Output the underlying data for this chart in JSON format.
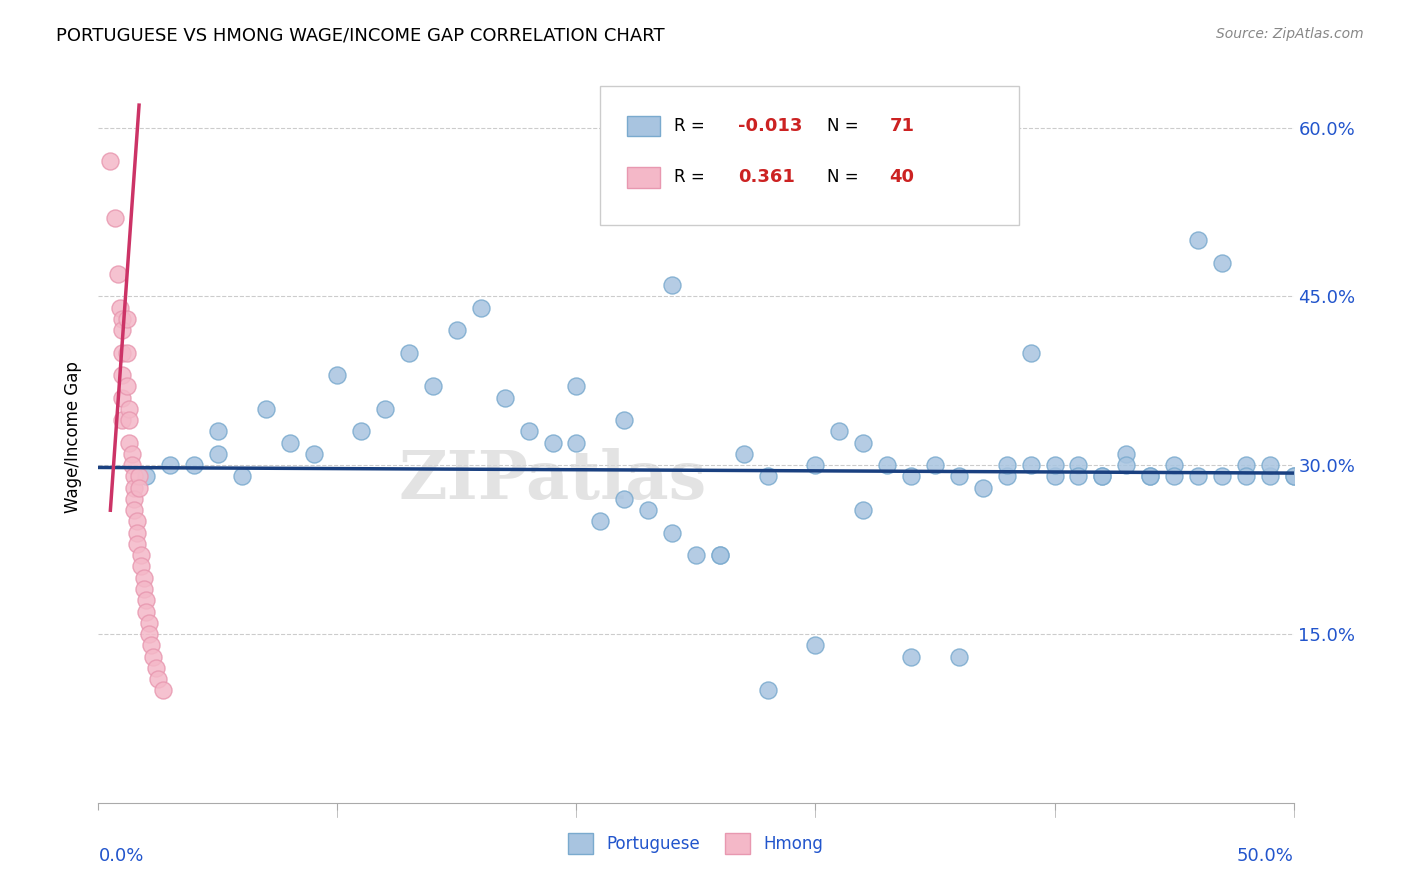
{
  "title": "PORTUGUESE VS HMONG WAGE/INCOME GAP CORRELATION CHART",
  "source": "Source: ZipAtlas.com",
  "ylabel": "Wage/Income Gap",
  "xlim": [
    0.0,
    0.5
  ],
  "ylim": [
    0.0,
    0.65
  ],
  "yticks": [
    0.15,
    0.3,
    0.45,
    0.6
  ],
  "ytick_labels": [
    "15.0%",
    "30.0%",
    "45.0%",
    "60.0%"
  ],
  "xticks": [
    0.0,
    0.1,
    0.2,
    0.3,
    0.4,
    0.5
  ],
  "grid_color": "#cccccc",
  "watermark": "ZIPatlas",
  "legend_R_blue": "-0.013",
  "legend_N_blue": "71",
  "legend_R_pink": "0.361",
  "legend_N_pink": "40",
  "blue_scatter_color": "#a8c4e0",
  "blue_scatter_edge": "#7aaace",
  "pink_scatter_color": "#f4b8c8",
  "pink_scatter_edge": "#e898b0",
  "blue_line_color": "#1a4080",
  "pink_line_color": "#cc3366",
  "portuguese_points_x": [
    0.02,
    0.03,
    0.04,
    0.05,
    0.05,
    0.06,
    0.07,
    0.08,
    0.09,
    0.1,
    0.11,
    0.12,
    0.13,
    0.14,
    0.15,
    0.16,
    0.17,
    0.18,
    0.19,
    0.2,
    0.21,
    0.22,
    0.23,
    0.24,
    0.25,
    0.26,
    0.27,
    0.28,
    0.3,
    0.31,
    0.32,
    0.33,
    0.34,
    0.35,
    0.36,
    0.37,
    0.38,
    0.39,
    0.4,
    0.41,
    0.42,
    0.43,
    0.44,
    0.45,
    0.46,
    0.47,
    0.48,
    0.49,
    0.5,
    0.5,
    0.49,
    0.48,
    0.47,
    0.46,
    0.45,
    0.44,
    0.43,
    0.42,
    0.41,
    0.4,
    0.39,
    0.38,
    0.36,
    0.34,
    0.32,
    0.3,
    0.28,
    0.26,
    0.24,
    0.22,
    0.2
  ],
  "portuguese_points_y": [
    0.29,
    0.3,
    0.3,
    0.33,
    0.31,
    0.29,
    0.35,
    0.32,
    0.31,
    0.38,
    0.33,
    0.35,
    0.4,
    0.37,
    0.42,
    0.44,
    0.36,
    0.33,
    0.32,
    0.37,
    0.25,
    0.27,
    0.26,
    0.24,
    0.22,
    0.22,
    0.31,
    0.29,
    0.3,
    0.33,
    0.32,
    0.3,
    0.29,
    0.3,
    0.29,
    0.28,
    0.29,
    0.4,
    0.29,
    0.3,
    0.29,
    0.31,
    0.29,
    0.3,
    0.5,
    0.48,
    0.3,
    0.29,
    0.29,
    0.29,
    0.3,
    0.29,
    0.29,
    0.29,
    0.29,
    0.29,
    0.3,
    0.29,
    0.29,
    0.3,
    0.3,
    0.3,
    0.13,
    0.13,
    0.26,
    0.14,
    0.1,
    0.22,
    0.46,
    0.34,
    0.32
  ],
  "hmong_points_x": [
    0.005,
    0.007,
    0.008,
    0.009,
    0.01,
    0.01,
    0.01,
    0.01,
    0.01,
    0.01,
    0.012,
    0.012,
    0.012,
    0.013,
    0.013,
    0.013,
    0.014,
    0.014,
    0.015,
    0.015,
    0.015,
    0.015,
    0.016,
    0.016,
    0.016,
    0.017,
    0.017,
    0.018,
    0.018,
    0.019,
    0.019,
    0.02,
    0.02,
    0.021,
    0.021,
    0.022,
    0.023,
    0.024,
    0.025,
    0.027
  ],
  "hmong_points_y": [
    0.57,
    0.52,
    0.47,
    0.44,
    0.43,
    0.42,
    0.4,
    0.38,
    0.36,
    0.34,
    0.43,
    0.4,
    0.37,
    0.35,
    0.34,
    0.32,
    0.31,
    0.3,
    0.29,
    0.28,
    0.27,
    0.26,
    0.25,
    0.24,
    0.23,
    0.29,
    0.28,
    0.22,
    0.21,
    0.2,
    0.19,
    0.18,
    0.17,
    0.16,
    0.15,
    0.14,
    0.13,
    0.12,
    0.11,
    0.1
  ],
  "blue_trend_x": [
    0.0,
    0.5
  ],
  "blue_trend_y": [
    0.298,
    0.293
  ],
  "pink_trend_x": [
    0.005,
    0.017
  ],
  "pink_trend_y": [
    0.26,
    0.62
  ]
}
